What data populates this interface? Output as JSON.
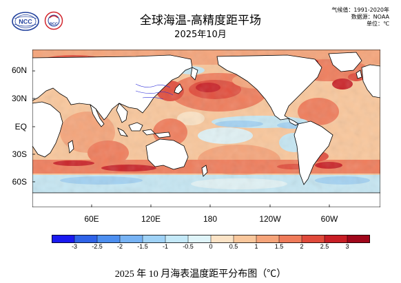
{
  "header": {
    "title": "全球海温-高精度距平场",
    "subtitle": "2025年10月",
    "meta": [
      "气候值：1991-2020年",
      "数据源：NOAA",
      "单位：℃"
    ]
  },
  "logos": [
    {
      "name": "ncc-logo",
      "text": "NCC"
    },
    {
      "name": "rcc-logo",
      "text": "RCC"
    }
  ],
  "map": {
    "lat_ticks": [
      "60N",
      "30N",
      "EQ",
      "30S",
      "60S"
    ],
    "lon_ticks": [
      "60E",
      "120E",
      "180",
      "120W",
      "60W"
    ],
    "palette": {
      "land": "#ffffff",
      "ice": "#ffffff",
      "coast": "#000000",
      "rivers": "#2b2bd8"
    }
  },
  "colorbar": {
    "colors": [
      "#1a1af0",
      "#2f63e8",
      "#4d8ff0",
      "#77b3f4",
      "#9fd2f6",
      "#c4e9f8",
      "#dff4f9",
      "#fbe3c6",
      "#f9c79c",
      "#f5a47a",
      "#ef7b5a",
      "#e04a3b",
      "#c81e25",
      "#a0071b"
    ],
    "labels": [
      "-3",
      "-2.5",
      "-2",
      "-1.5",
      "-1",
      "-0.5",
      "0",
      "0.5",
      "1",
      "1.5",
      "2",
      "2.5",
      "3"
    ]
  },
  "caption": "2025 年 10 月海表温度距平分布图（℃）"
}
